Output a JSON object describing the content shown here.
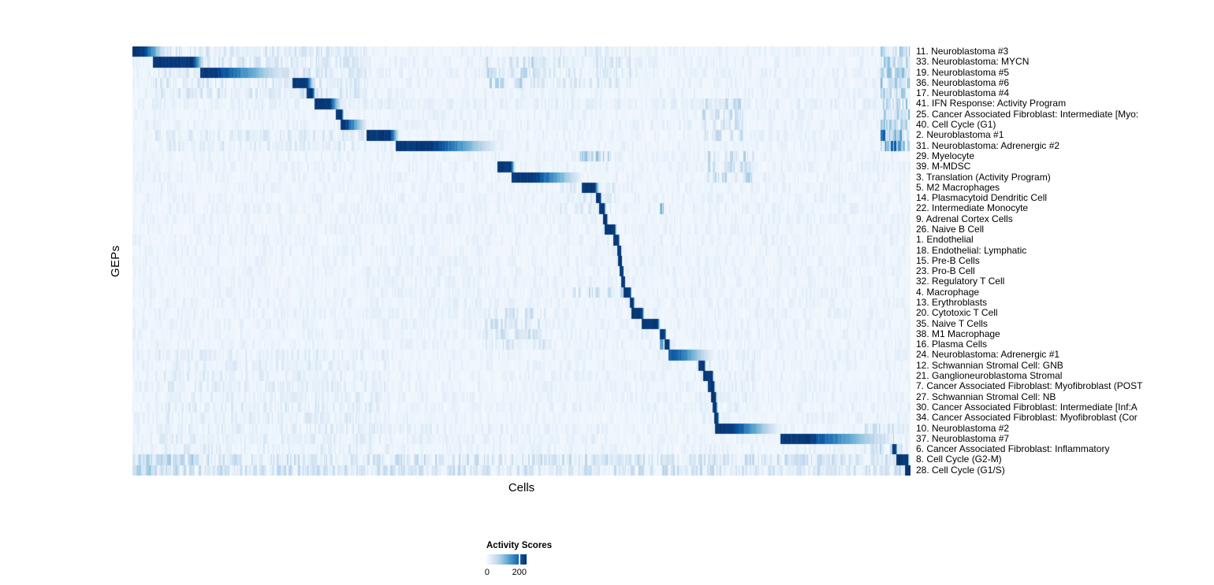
{
  "chart_data": {
    "type": "heatmap",
    "title": "",
    "xlabel": "Cells",
    "ylabel": "GEPs",
    "legend": {
      "title": "Activity Scores",
      "ticks": [
        "0",
        "200"
      ],
      "tick_values": [
        0,
        200
      ]
    },
    "colormap": {
      "name": "Blues",
      "stops": [
        "#f7fbff",
        "#deebf7",
        "#c6dbef",
        "#9ecae1",
        "#6baed6",
        "#4292c6",
        "#2171b5",
        "#08519c",
        "#08306b"
      ]
    },
    "n_rows": 41,
    "gep_rows": [
      {
        "label": "11. Neuroblastoma #3",
        "block": {
          "start": 0.0,
          "solid_end": 0.014,
          "fade_end": 0.042,
          "peak": 1
        }
      },
      {
        "label": "33. Neuroblastoma: MYCN",
        "block": {
          "start": 0.027,
          "solid_end": 0.078,
          "fade_end": 0.092,
          "peak": 1
        }
      },
      {
        "label": "19. Neuroblastoma #5",
        "block": {
          "start": 0.088,
          "solid_end": 0.108,
          "fade_end": 0.2,
          "peak": 1
        }
      },
      {
        "label": "36. Neuroblastoma #6",
        "block": {
          "start": 0.206,
          "solid_end": 0.223,
          "fade_end": 0.233,
          "peak": 1
        }
      },
      {
        "label": "17. Neuroblastoma #4",
        "block": {
          "start": 0.224,
          "solid_end": 0.231,
          "fade_end": 0.235,
          "peak": 1
        }
      },
      {
        "label": "41. IFN Response: Activity Program",
        "block": {
          "start": 0.235,
          "solid_end": 0.253,
          "fade_end": 0.268,
          "peak": 1
        }
      },
      {
        "label": "25. Cancer Associated Fibroblast: Intermediate [Myo:",
        "block": {
          "start": 0.262,
          "solid_end": 0.268,
          "fade_end": 0.271,
          "peak": 1
        }
      },
      {
        "label": "40. Cell Cycle (G1)",
        "block": {
          "start": 0.268,
          "solid_end": 0.273,
          "fade_end": 0.3,
          "peak": 1
        }
      },
      {
        "label": "2. Neuroblastoma #1",
        "block": {
          "start": 0.301,
          "solid_end": 0.331,
          "fade_end": 0.342,
          "peak": 1
        }
      },
      {
        "label": "31. Neuroblastoma: Adrenergic #2",
        "block": {
          "start": 0.339,
          "solid_end": 0.387,
          "fade_end": 0.47,
          "peak": 1
        }
      },
      {
        "label": "29. Myelocyte",
        "block": null
      },
      {
        "label": "39. M-MDSC",
        "block": {
          "start": 0.47,
          "solid_end": 0.486,
          "fade_end": 0.491,
          "peak": 1
        }
      },
      {
        "label": "3. Translation (Activity Program)",
        "block": {
          "start": 0.488,
          "solid_end": 0.517,
          "fade_end": 0.577,
          "peak": 1
        }
      },
      {
        "label": "5. M2 Macrophages",
        "block": {
          "start": 0.578,
          "solid_end": 0.593,
          "fade_end": 0.599,
          "peak": 1
        }
      },
      {
        "label": "14. Plasmacytoid Dendritic Cell",
        "block": {
          "start": 0.596,
          "solid_end": 0.6,
          "fade_end": 0.602,
          "peak": 1
        }
      },
      {
        "label": "22. Intermediate Monocyte",
        "block": {
          "start": 0.6,
          "solid_end": 0.605,
          "fade_end": 0.607,
          "peak": 1
        }
      },
      {
        "label": "9. Adrenal Cortex Cells",
        "block": {
          "start": 0.605,
          "solid_end": 0.608,
          "fade_end": 0.61,
          "peak": 1
        }
      },
      {
        "label": "26. Naive B Cell",
        "block": {
          "start": 0.607,
          "solid_end": 0.619,
          "fade_end": 0.622,
          "peak": 1
        }
      },
      {
        "label": "1. Endothelial",
        "block": {
          "start": 0.619,
          "solid_end": 0.624,
          "fade_end": 0.626,
          "peak": 1
        }
      },
      {
        "label": "18. Endothelial: Lymphatic",
        "block": {
          "start": 0.624,
          "solid_end": 0.627,
          "fade_end": 0.628,
          "peak": 1
        }
      },
      {
        "label": "15. Pre-B Cells",
        "block": {
          "start": 0.625,
          "solid_end": 0.628,
          "fade_end": 0.629,
          "peak": 1
        }
      },
      {
        "label": "23. Pro-B Cell",
        "block": {
          "start": 0.627,
          "solid_end": 0.63,
          "fade_end": 0.631,
          "peak": 1
        }
      },
      {
        "label": "32. Regulatory T Cell",
        "block": {
          "start": 0.629,
          "solid_end": 0.632,
          "fade_end": 0.633,
          "peak": 1
        }
      },
      {
        "label": "4. Macrophage",
        "block": {
          "start": 0.632,
          "solid_end": 0.639,
          "fade_end": 0.641,
          "peak": 1
        }
      },
      {
        "label": "13. Erythroblasts",
        "block": {
          "start": 0.64,
          "solid_end": 0.643,
          "fade_end": 0.645,
          "peak": 1
        }
      },
      {
        "label": "20. Cytotoxic T Cell",
        "block": {
          "start": 0.642,
          "solid_end": 0.654,
          "fade_end": 0.657,
          "peak": 1
        }
      },
      {
        "label": "35. Naive T Cells",
        "block": {
          "start": 0.655,
          "solid_end": 0.674,
          "fade_end": 0.677,
          "peak": 1
        }
      },
      {
        "label": "38. M1 Macrophage",
        "block": {
          "start": 0.678,
          "solid_end": 0.683,
          "fade_end": 0.685,
          "peak": 1
        }
      },
      {
        "label": "16. Plasma Cells",
        "block": {
          "start": 0.684,
          "solid_end": 0.688,
          "fade_end": 0.69,
          "peak": 1
        }
      },
      {
        "label": "24. Neuroblastoma: Adrenergic #1",
        "block": {
          "start": 0.689,
          "solid_end": 0.7,
          "fade_end": 0.745,
          "peak": 0.85
        }
      },
      {
        "label": "12. Schwannian Stromal Cell: GNB",
        "block": {
          "start": 0.728,
          "solid_end": 0.734,
          "fade_end": 0.736,
          "peak": 1
        }
      },
      {
        "label": "21. Ganglioneuroblastoma Stromal",
        "block": {
          "start": 0.734,
          "solid_end": 0.744,
          "fade_end": 0.746,
          "peak": 1
        }
      },
      {
        "label": "7. Cancer Associated Fibroblast: Myofibroblast (POST",
        "block": {
          "start": 0.74,
          "solid_end": 0.746,
          "fade_end": 0.748,
          "peak": 1
        }
      },
      {
        "label": "27. Schwannian Stromal Cell: NB",
        "block": {
          "start": 0.744,
          "solid_end": 0.748,
          "fade_end": 0.75,
          "peak": 1
        }
      },
      {
        "label": "30. Cancer Associated Fibroblast: Intermediate [Inf:A",
        "block": {
          "start": 0.746,
          "solid_end": 0.749,
          "fade_end": 0.751,
          "peak": 1
        }
      },
      {
        "label": "34. Cancer Associated Fibroblast: Myofibroblast (Cor",
        "block": {
          "start": 0.748,
          "solid_end": 0.751,
          "fade_end": 0.753,
          "peak": 1
        }
      },
      {
        "label": "10. Neuroblastoma #2",
        "block": {
          "start": 0.749,
          "solid_end": 0.772,
          "fade_end": 0.83,
          "peak": 1
        }
      },
      {
        "label": "37. Neuroblastoma #7",
        "block": {
          "start": 0.833,
          "solid_end": 0.871,
          "fade_end": 0.975,
          "peak": 1
        }
      },
      {
        "label": "6. Cancer Associated Fibroblast: Inflammatory",
        "block": {
          "start": 0.977,
          "solid_end": 0.98,
          "fade_end": 0.982,
          "peak": 1
        }
      },
      {
        "label": "8. Cell Cycle (G2-M)",
        "block": {
          "start": 0.982,
          "solid_end": 0.995,
          "fade_end": 0.997,
          "peak": 1
        }
      },
      {
        "label": "28. Cell Cycle (G1/S)",
        "block": {
          "start": 0.993,
          "solid_end": 1.0,
          "fade_end": 1.0,
          "peak": 1
        }
      }
    ],
    "stripe_noise_regions": [
      {
        "rows": [
          0,
          4
        ],
        "x": [
          0.03,
          0.3
        ],
        "intensity": 0.22,
        "density": 0.45
      },
      {
        "rows": [
          0,
          3
        ],
        "x": [
          0.52,
          0.64
        ],
        "intensity": 0.2,
        "density": 0.35
      },
      {
        "rows": [
          0,
          9
        ],
        "x": [
          0.962,
          0.998
        ],
        "intensity": 0.45,
        "density": 0.7
      },
      {
        "rows": [
          8,
          9
        ],
        "x": [
          0.962,
          0.988
        ],
        "intensity": 0.85,
        "density": 0.8
      },
      {
        "rows": [
          1,
          3
        ],
        "x": [
          0.455,
          0.52
        ],
        "intensity": 0.35,
        "density": 0.45
      },
      {
        "rows": [
          5,
          5
        ],
        "x": [
          0.02,
          0.96
        ],
        "intensity": 0.12,
        "density": 0.35
      },
      {
        "rows": [
          5,
          8
        ],
        "x": [
          0.73,
          0.785
        ],
        "intensity": 0.3,
        "density": 0.5
      },
      {
        "rows": [
          8,
          9
        ],
        "x": [
          0.03,
          0.3
        ],
        "intensity": 0.18,
        "density": 0.4
      },
      {
        "rows": [
          10,
          12
        ],
        "x": [
          0.74,
          0.8
        ],
        "intensity": 0.35,
        "density": 0.5
      },
      {
        "rows": [
          10,
          10
        ],
        "x": [
          0.575,
          0.615
        ],
        "intensity": 0.5,
        "density": 0.6
      },
      {
        "rows": [
          13,
          15
        ],
        "x": [
          0.55,
          0.62
        ],
        "intensity": 0.2,
        "density": 0.4
      },
      {
        "rows": [
          23,
          23
        ],
        "x": [
          0.55,
          0.635
        ],
        "intensity": 0.3,
        "density": 0.45
      },
      {
        "rows": [
          25,
          28
        ],
        "x": [
          0.45,
          0.53
        ],
        "intensity": 0.25,
        "density": 0.4
      },
      {
        "rows": [
          15,
          15
        ],
        "x": [
          0.678,
          0.682
        ],
        "intensity": 0.5,
        "density": 1.0
      },
      {
        "rows": [
          27,
          28
        ],
        "x": [
          0.678,
          0.682
        ],
        "intensity": 0.7,
        "density": 1.0
      },
      {
        "rows": [
          20,
          26
        ],
        "x": [
          0.3,
          0.45
        ],
        "intensity": 0.1,
        "density": 0.3
      },
      {
        "rows": [
          29,
          38
        ],
        "x": [
          0.03,
          0.33
        ],
        "intensity": 0.15,
        "density": 0.35
      },
      {
        "rows": [
          29,
          35
        ],
        "x": [
          0.73,
          0.8
        ],
        "intensity": 0.12,
        "density": 0.3
      },
      {
        "rows": [
          36,
          38
        ],
        "x": [
          0.94,
          0.99
        ],
        "intensity": 0.3,
        "density": 0.5
      },
      {
        "rows": [
          36,
          37
        ],
        "x": [
          0.3,
          0.6
        ],
        "intensity": 0.12,
        "density": 0.3
      },
      {
        "rows": [
          39,
          40
        ],
        "x": [
          0.0,
          0.99
        ],
        "intensity": 0.28,
        "density": 0.55
      },
      {
        "rows": [
          39,
          40
        ],
        "x": [
          0.0,
          0.08
        ],
        "intensity": 0.4,
        "density": 0.6
      }
    ]
  }
}
